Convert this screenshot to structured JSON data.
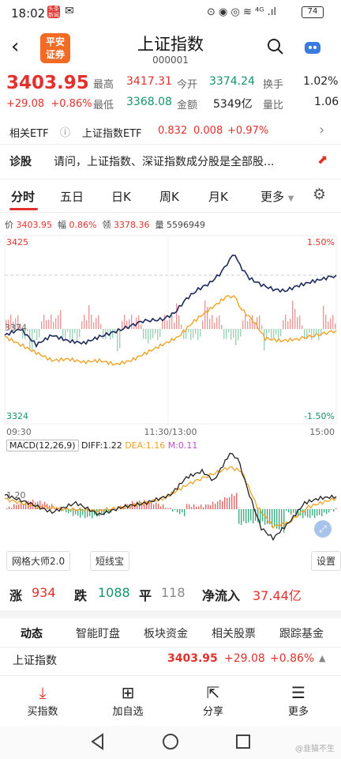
{
  "status_bar": {
    "time": "18:02",
    "badge1": "头条 新闻",
    "badge2": "✉",
    "icons": "⊙ ◉ ◎ ≋ ⁴ᴳ .ıl",
    "battery": "74"
  },
  "header": {
    "logo_line1": "平安",
    "logo_line2": "证券",
    "title": "上证指数",
    "code": "000001"
  },
  "quote": {
    "price": "3403.95",
    "change": "+29.08",
    "change_pct": "+0.86%",
    "high_label": "最高",
    "high": "3417.31",
    "low_label": "最低",
    "low": "3368.08",
    "open_label": "今开",
    "open": "3374.24",
    "amount_label": "金额",
    "amount": "5349亿",
    "turnover_label": "换手",
    "turnover": "1.02%",
    "vol_ratio_label": "量比",
    "vol_ratio": "1.06"
  },
  "etf": {
    "label": "相关ETF",
    "info_icon": "ⓘ",
    "name": "上证指数ETF",
    "price": "0.832",
    "change": "0.008",
    "pct": "+0.97%"
  },
  "diagnosis": {
    "label": "诊股",
    "text": "请问，上证指数、深证指数成分股是全部股..."
  },
  "tabs": [
    "分时",
    "五日",
    "日K",
    "周K",
    "月K",
    "更多"
  ],
  "chart_info": {
    "price_label": "价",
    "price": "3403.95",
    "range_label": "幅",
    "range": "0.86%",
    "lead_label": "领",
    "lead": "3378.36",
    "vol_label": "量",
    "vol": "5596949"
  },
  "axis": {
    "top": "3425",
    "mid": "3374",
    "bottom": "3324",
    "pct_top": "1.50%",
    "pct_bottom": "-1.50%",
    "t_start": "09:30",
    "t_mid": "11:30/13:00",
    "t_end": "15:00"
  },
  "macd": {
    "name": "MACD(12,26,9)",
    "diff": "DIFF:1.22",
    "dea": "DEA:1.16",
    "m": "M:0.11",
    "axis_val": "1.20"
  },
  "tools": {
    "grid": "网格大师2.0",
    "short": "短线宝",
    "settings": "设置"
  },
  "breadth": {
    "up_label": "涨",
    "up": "934",
    "down_label": "跌",
    "down": "1088",
    "flat_label": "平",
    "flat": "118",
    "flow_label": "净流入",
    "flow": "37.44亿"
  },
  "subtabs": [
    "动态",
    "智能盯盘",
    "板块资金",
    "相关股票",
    "跟踪基金"
  ],
  "index_row": {
    "name": "上证指数",
    "price": "3403.95",
    "change": "+29.08",
    "pct": "+0.86%"
  },
  "bottom_bar": [
    {
      "icon": "buy-index-icon",
      "glyph": "⤓",
      "label": "买指数"
    },
    {
      "icon": "add-favorite-icon",
      "glyph": "⊞",
      "label": "加自选"
    },
    {
      "icon": "share-icon",
      "glyph": "⇱",
      "label": "分享"
    },
    {
      "icon": "more-icon",
      "glyph": "☰",
      "label": "更多"
    }
  ],
  "watermark": "@韭猫不生",
  "colors": {
    "up": "#e2312c",
    "down": "#14946b",
    "price_line": "#1d2b5c",
    "avg_line": "#f0a328"
  }
}
